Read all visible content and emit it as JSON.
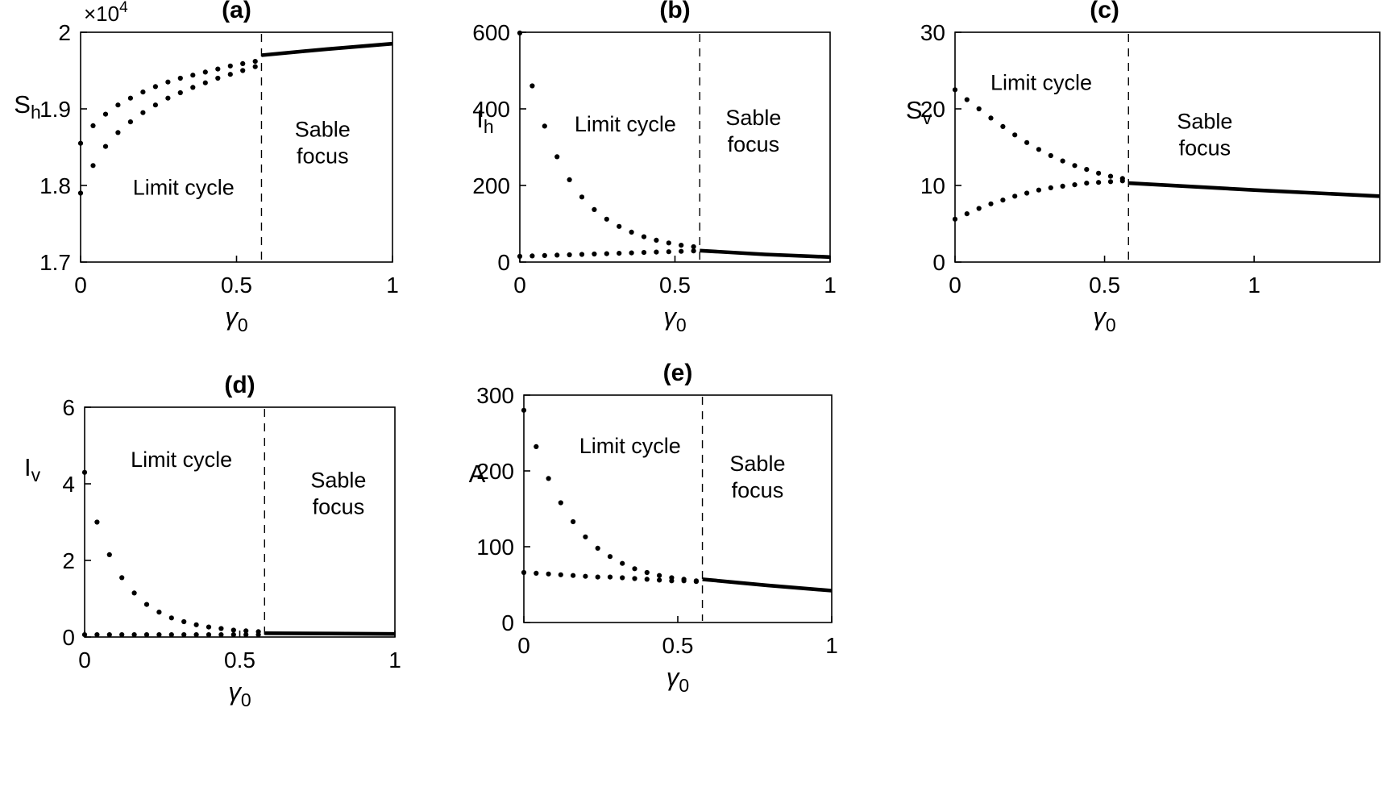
{
  "figure": {
    "background_color": "#ffffff",
    "foreground_color": "#000000",
    "panel_count": 5
  },
  "chart_data": [
    {
      "id": "a",
      "type": "scatter",
      "title": "(a)",
      "ylabel": {
        "main": "S",
        "sub": "h"
      },
      "xlabel": {
        "symbol": "γ",
        "sub": "0"
      },
      "scale_label": {
        "base": "×10",
        "exp": "4"
      },
      "xlim": [
        0,
        1
      ],
      "ylim": [
        1.7,
        2
      ],
      "xticks": {
        "values": [
          0,
          0.5,
          1
        ],
        "labels": [
          "0",
          "0.5",
          "1"
        ]
      },
      "yticks": {
        "values": [
          1.7,
          1.8,
          1.9,
          2
        ],
        "labels": [
          "1.7",
          "1.8",
          "1.9",
          "2"
        ]
      },
      "grid": false,
      "bifurcation_x": 0.58,
      "regions": [
        {
          "name": "limit-cycle-label",
          "lines": [
            "Limit cycle"
          ]
        },
        {
          "name": "stable-focus-label",
          "lines": [
            "Sable",
            "focus"
          ]
        }
      ],
      "series": [
        {
          "name": "limit-cycle-max",
          "style": "scatter",
          "x": [
            0,
            0.04,
            0.08,
            0.12,
            0.16,
            0.2,
            0.24,
            0.28,
            0.32,
            0.36,
            0.4,
            0.44,
            0.48,
            0.52,
            0.56
          ],
          "y": [
            1.855,
            1.878,
            1.893,
            1.905,
            1.914,
            1.922,
            1.929,
            1.935,
            1.94,
            1.944,
            1.948,
            1.952,
            1.956,
            1.959,
            1.962
          ]
        },
        {
          "name": "limit-cycle-min",
          "style": "scatter",
          "x": [
            0,
            0.04,
            0.08,
            0.12,
            0.16,
            0.2,
            0.24,
            0.28,
            0.32,
            0.36,
            0.4,
            0.44,
            0.48,
            0.52,
            0.56
          ],
          "y": [
            1.79,
            1.826,
            1.851,
            1.869,
            1.883,
            1.895,
            1.905,
            1.914,
            1.921,
            1.928,
            1.934,
            1.94,
            1.945,
            1.95,
            1.955
          ]
        },
        {
          "name": "stable-focus-branch",
          "style": "line",
          "x": [
            0.58,
            0.79,
            1
          ],
          "y": [
            1.97,
            1.978,
            1.985
          ]
        }
      ]
    },
    {
      "id": "b",
      "type": "scatter",
      "title": "(b)",
      "ylabel": {
        "main": "I",
        "sub": "h"
      },
      "xlabel": {
        "symbol": "γ",
        "sub": "0"
      },
      "xlim": [
        0,
        1
      ],
      "ylim": [
        0,
        600
      ],
      "xticks": {
        "values": [
          0,
          0.5,
          1
        ],
        "labels": [
          "0",
          "0.5",
          "1"
        ]
      },
      "yticks": {
        "values": [
          0,
          200,
          400,
          600
        ],
        "labels": [
          "0",
          "200",
          "400",
          "600"
        ]
      },
      "grid": false,
      "bifurcation_x": 0.58,
      "regions": [
        {
          "name": "limit-cycle-label",
          "lines": [
            "Limit cycle"
          ]
        },
        {
          "name": "stable-focus-label",
          "lines": [
            "Sable",
            "focus"
          ]
        }
      ],
      "series": [
        {
          "name": "limit-cycle-max",
          "style": "scatter",
          "x": [
            0,
            0.04,
            0.08,
            0.12,
            0.16,
            0.2,
            0.24,
            0.28,
            0.32,
            0.36,
            0.4,
            0.44,
            0.48,
            0.52,
            0.56
          ],
          "y": [
            598,
            460,
            355,
            275,
            215,
            170,
            137,
            112,
            93,
            78,
            66,
            57,
            50,
            44,
            40
          ]
        },
        {
          "name": "limit-cycle-min",
          "style": "scatter",
          "x": [
            0,
            0.04,
            0.08,
            0.12,
            0.16,
            0.2,
            0.24,
            0.28,
            0.32,
            0.36,
            0.4,
            0.44,
            0.48,
            0.52,
            0.56
          ],
          "y": [
            15,
            16,
            17,
            18,
            19,
            20,
            21,
            22,
            23,
            24,
            25,
            26,
            27,
            28,
            29
          ]
        },
        {
          "name": "stable-focus-branch",
          "style": "line",
          "x": [
            0.58,
            0.79,
            1
          ],
          "y": [
            30,
            20,
            13
          ]
        }
      ]
    },
    {
      "id": "c",
      "type": "scatter",
      "title": "(c)",
      "ylabel": {
        "main": "S",
        "sub": "v"
      },
      "xlabel": {
        "symbol": "γ",
        "sub": "0"
      },
      "xlim": [
        0,
        1.42
      ],
      "ylim": [
        0,
        30
      ],
      "xticks": {
        "values": [
          0,
          0.5,
          1
        ],
        "labels": [
          "0",
          "0.5",
          "1"
        ]
      },
      "yticks": {
        "values": [
          0,
          10,
          20,
          30
        ],
        "labels": [
          "0",
          "10",
          "20",
          "30"
        ]
      },
      "grid": false,
      "bifurcation_x": 0.58,
      "regions": [
        {
          "name": "limit-cycle-label",
          "lines": [
            "Limit cycle"
          ]
        },
        {
          "name": "stable-focus-label",
          "lines": [
            "Sable",
            "focus"
          ]
        }
      ],
      "series": [
        {
          "name": "limit-cycle-max",
          "style": "scatter",
          "x": [
            0,
            0.04,
            0.08,
            0.12,
            0.16,
            0.2,
            0.24,
            0.28,
            0.32,
            0.36,
            0.4,
            0.44,
            0.48,
            0.52,
            0.56
          ],
          "y": [
            22.5,
            21.2,
            20,
            18.8,
            17.7,
            16.6,
            15.6,
            14.7,
            13.9,
            13.2,
            12.6,
            12.1,
            11.6,
            11.2,
            10.9
          ]
        },
        {
          "name": "limit-cycle-min",
          "style": "scatter",
          "x": [
            0,
            0.04,
            0.08,
            0.12,
            0.16,
            0.2,
            0.24,
            0.28,
            0.32,
            0.36,
            0.4,
            0.44,
            0.48,
            0.52,
            0.56
          ],
          "y": [
            5.6,
            6.3,
            7,
            7.6,
            8.1,
            8.6,
            9,
            9.4,
            9.7,
            9.9,
            10.1,
            10.3,
            10.4,
            10.5,
            10.6
          ]
        },
        {
          "name": "stable-focus-branch",
          "style": "line",
          "x": [
            0.58,
            1,
            1.42
          ],
          "y": [
            10.3,
            9.4,
            8.6
          ]
        }
      ]
    },
    {
      "id": "d",
      "type": "scatter",
      "title": "(d)",
      "ylabel": {
        "main": "I",
        "sub": "v"
      },
      "xlabel": {
        "symbol": "γ",
        "sub": "0"
      },
      "xlim": [
        0,
        1
      ],
      "ylim": [
        0,
        6
      ],
      "xticks": {
        "values": [
          0,
          0.5,
          1
        ],
        "labels": [
          "0",
          "0.5",
          "1"
        ]
      },
      "yticks": {
        "values": [
          0,
          2,
          4,
          6
        ],
        "labels": [
          "0",
          "2",
          "4",
          "6"
        ]
      },
      "grid": false,
      "bifurcation_x": 0.58,
      "regions": [
        {
          "name": "limit-cycle-label",
          "lines": [
            "Limit cycle"
          ]
        },
        {
          "name": "stable-focus-label",
          "lines": [
            "Sable",
            "focus"
          ]
        }
      ],
      "series": [
        {
          "name": "limit-cycle-max",
          "style": "scatter",
          "x": [
            0,
            0.04,
            0.08,
            0.12,
            0.16,
            0.2,
            0.24,
            0.28,
            0.32,
            0.36,
            0.4,
            0.44,
            0.48,
            0.52,
            0.56
          ],
          "y": [
            4.3,
            3,
            2.15,
            1.55,
            1.15,
            0.85,
            0.65,
            0.5,
            0.4,
            0.32,
            0.26,
            0.22,
            0.18,
            0.16,
            0.14
          ]
        },
        {
          "name": "limit-cycle-min",
          "style": "scatter",
          "x": [
            0,
            0.04,
            0.08,
            0.12,
            0.16,
            0.2,
            0.24,
            0.28,
            0.32,
            0.36,
            0.4,
            0.44,
            0.48,
            0.52,
            0.56
          ],
          "y": [
            0.06,
            0.06,
            0.06,
            0.06,
            0.06,
            0.06,
            0.06,
            0.06,
            0.06,
            0.06,
            0.06,
            0.06,
            0.06,
            0.06,
            0.06
          ]
        },
        {
          "name": "stable-focus-branch",
          "style": "line",
          "x": [
            0.58,
            0.79,
            1
          ],
          "y": [
            0.1,
            0.09,
            0.08
          ]
        }
      ]
    },
    {
      "id": "e",
      "type": "scatter",
      "title": "(e)",
      "ylabel": {
        "main": "A",
        "sub": ""
      },
      "xlabel": {
        "symbol": "γ",
        "sub": "0"
      },
      "xlim": [
        0,
        1
      ],
      "ylim": [
        0,
        300
      ],
      "xticks": {
        "values": [
          0,
          0.5,
          1
        ],
        "labels": [
          "0",
          "0.5",
          "1"
        ]
      },
      "yticks": {
        "values": [
          0,
          100,
          200,
          300
        ],
        "labels": [
          "0",
          "100",
          "200",
          "300"
        ]
      },
      "grid": false,
      "bifurcation_x": 0.58,
      "regions": [
        {
          "name": "limit-cycle-label",
          "lines": [
            "Limit cycle"
          ]
        },
        {
          "name": "stable-focus-label",
          "lines": [
            "Sable",
            "focus"
          ]
        }
      ],
      "series": [
        {
          "name": "limit-cycle-max",
          "style": "scatter",
          "x": [
            0,
            0.04,
            0.08,
            0.12,
            0.16,
            0.2,
            0.24,
            0.28,
            0.32,
            0.36,
            0.4,
            0.44,
            0.48,
            0.52,
            0.56
          ],
          "y": [
            280,
            232,
            190,
            158,
            133,
            113,
            98,
            87,
            78,
            71,
            66,
            62,
            59,
            57,
            55
          ]
        },
        {
          "name": "limit-cycle-min",
          "style": "scatter",
          "x": [
            0,
            0.04,
            0.08,
            0.12,
            0.16,
            0.2,
            0.24,
            0.28,
            0.32,
            0.36,
            0.4,
            0.44,
            0.48,
            0.52,
            0.56
          ],
          "y": [
            66,
            65,
            64,
            63,
            62,
            61,
            60,
            60,
            59,
            58,
            57,
            56,
            55,
            55,
            54
          ]
        },
        {
          "name": "stable-focus-branch",
          "style": "line",
          "x": [
            0.58,
            0.79,
            1
          ],
          "y": [
            57,
            49,
            42
          ]
        }
      ]
    }
  ]
}
